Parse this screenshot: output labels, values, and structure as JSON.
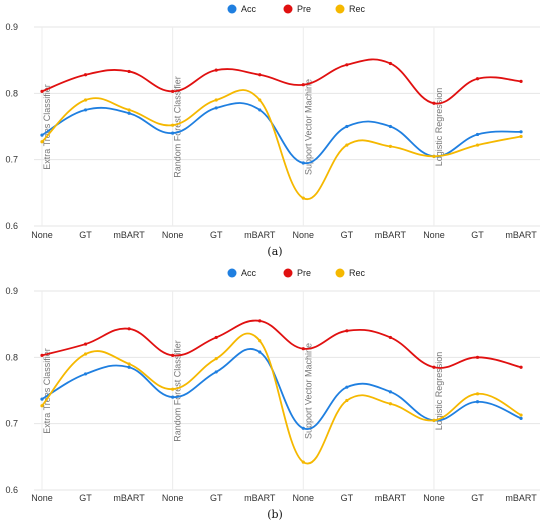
{
  "chart_data": [
    {
      "type": "line",
      "panel_label": "(a)",
      "categories": [
        "None",
        "GT",
        "mBART",
        "None",
        "GT",
        "mBART",
        "None",
        "GT",
        "mBART",
        "None",
        "GT",
        "mBART"
      ],
      "ylim": [
        0.6,
        0.9
      ],
      "yticks": [
        "0.6",
        "0.7",
        "0.8",
        "0.9"
      ],
      "grid": true,
      "legend": "top-center",
      "group_labels": [
        "Extra Trees Classifier",
        "Random Forest Classifier",
        "Support Vector Machine",
        "Logistic Regression"
      ],
      "series": [
        {
          "name": "Acc",
          "color": "#1f7fe0",
          "values": [
            0.737,
            0.775,
            0.77,
            0.74,
            0.778,
            0.775,
            0.695,
            0.75,
            0.75,
            0.705,
            0.738,
            0.742
          ]
        },
        {
          "name": "Pre",
          "color": "#e01010",
          "values": [
            0.803,
            0.828,
            0.833,
            0.803,
            0.835,
            0.828,
            0.813,
            0.843,
            0.845,
            0.785,
            0.822,
            0.818
          ]
        },
        {
          "name": "Rec",
          "color": "#f5b800",
          "values": [
            0.727,
            0.79,
            0.775,
            0.752,
            0.79,
            0.79,
            0.642,
            0.722,
            0.72,
            0.705,
            0.722,
            0.735
          ]
        }
      ]
    },
    {
      "type": "line",
      "panel_label": "(b)",
      "categories": [
        "None",
        "GT",
        "mBART",
        "None",
        "GT",
        "mBART",
        "None",
        "GT",
        "mBART",
        "None",
        "GT",
        "mBART"
      ],
      "ylim": [
        0.6,
        0.9
      ],
      "yticks": [
        "0.6",
        "0.7",
        "0.8",
        "0.9"
      ],
      "grid": true,
      "legend": "top-center",
      "group_labels": [
        "Extra Trees Classifier",
        "Random Forest Classifier",
        "Support Vector Machine",
        "Logistic Regression"
      ],
      "series": [
        {
          "name": "Acc",
          "color": "#1f7fe0",
          "values": [
            0.737,
            0.775,
            0.785,
            0.74,
            0.778,
            0.808,
            0.693,
            0.755,
            0.748,
            0.705,
            0.733,
            0.708
          ]
        },
        {
          "name": "Pre",
          "color": "#e01010",
          "values": [
            0.803,
            0.82,
            0.843,
            0.803,
            0.83,
            0.855,
            0.813,
            0.84,
            0.83,
            0.785,
            0.8,
            0.785
          ]
        },
        {
          "name": "Rec",
          "color": "#f5b800",
          "values": [
            0.727,
            0.805,
            0.79,
            0.752,
            0.798,
            0.825,
            0.642,
            0.735,
            0.73,
            0.705,
            0.745,
            0.713
          ]
        }
      ]
    }
  ]
}
